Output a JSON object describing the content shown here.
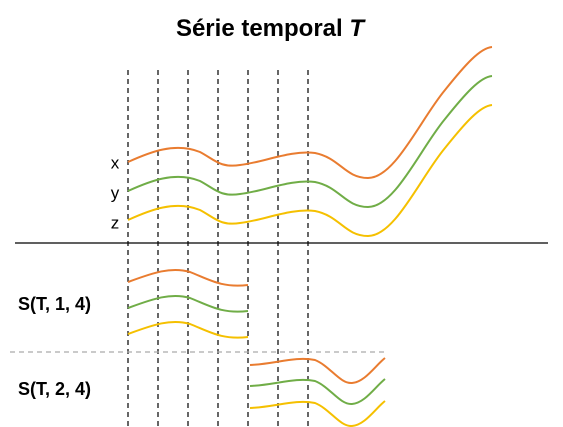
{
  "title": {
    "text": "Série temporal",
    "variable": "T"
  },
  "series_labels": [
    "x",
    "y",
    "z"
  ],
  "subsequences": [
    "S(T, 1, 4)",
    "S(T, 2, 4)"
  ]
}
